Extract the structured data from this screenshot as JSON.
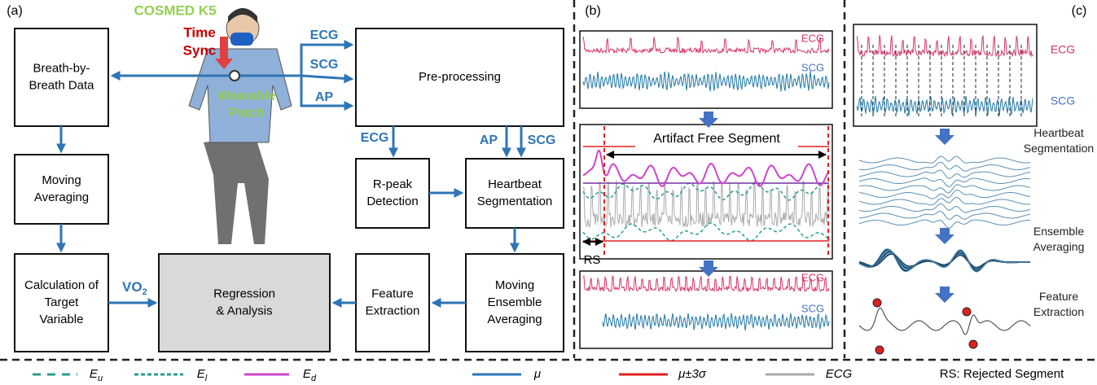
{
  "panel_a": {
    "label": "(a)",
    "device": "COSMED K5",
    "sync": [
      "Time",
      "Sync"
    ],
    "patch": [
      "Wearable",
      "Patch"
    ],
    "boxes": [
      {
        "lines": [
          "Breath-by-",
          "Breath Data"
        ]
      },
      {
        "lines": [
          "Moving",
          "Averaging"
        ]
      },
      {
        "lines": [
          "Calculation of",
          "Target",
          "Variable"
        ]
      },
      {
        "lines": [
          "Regression",
          "& Analysis"
        ]
      },
      {
        "lines": [
          "Feature",
          "Extraction"
        ]
      },
      {
        "lines": [
          "Moving",
          "Ensemble",
          "Averaging"
        ]
      },
      {
        "lines": [
          "R-peak",
          "Detection"
        ]
      },
      {
        "lines": [
          "Heartbeat",
          "Segmentation"
        ]
      },
      {
        "lines": [
          "Pre-processing"
        ]
      }
    ],
    "signal_labels": [
      "ECG",
      "SCG",
      "AP"
    ],
    "lower_labels": [
      "ECG",
      "AP",
      "SCG"
    ],
    "vo2": {
      "base": "VO",
      "sub": "2"
    }
  },
  "panel_b": {
    "label": "(b)",
    "top": [
      "ECG",
      "SCG"
    ],
    "artifact": "Artifact Free Segment",
    "rs": "RS",
    "bottom": [
      "ECG",
      "SCG"
    ]
  },
  "panel_c": {
    "label": "(c)",
    "signals": [
      "ECG",
      "SCG"
    ],
    "steps": [
      [
        "Heartbeat",
        "Segmentation"
      ],
      [
        "Ensemble",
        "Averaging"
      ],
      [
        "Feature",
        "Extraction"
      ]
    ]
  },
  "legend": [
    {
      "base": "E",
      "sub": "u"
    },
    {
      "base": "E",
      "sub": "l"
    },
    {
      "base": "E",
      "sub": "d"
    },
    {
      "base": "μ"
    },
    {
      "base": "μ±3σ"
    },
    {
      "base": "ECG"
    }
  ],
  "note": "RS: Rejected Segment"
}
